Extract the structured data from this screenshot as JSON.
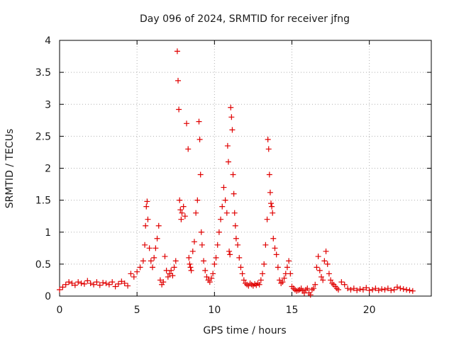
{
  "chart_data": {
    "type": "scatter",
    "title": "Day 096 of 2024, SRMTID for receiver jfng",
    "xlabel": "GPS time / hours",
    "ylabel": "SRMTID / TECUs",
    "xlim": [
      0,
      24
    ],
    "ylim": [
      0,
      4
    ],
    "xticks": [
      0,
      5,
      10,
      15,
      20
    ],
    "yticks": [
      0,
      0.5,
      1,
      1.5,
      2,
      2.5,
      3,
      3.5,
      4
    ],
    "xtick_labels": [
      "0",
      "5",
      "10",
      "15",
      "20"
    ],
    "ytick_labels": [
      "0",
      "0.5",
      "1",
      "1.5",
      "2",
      "2.5",
      "3",
      "3.5",
      "4"
    ],
    "grid": true,
    "marker": "+",
    "series": [
      {
        "name": "SRMTID",
        "color": "#e00000",
        "x": [
          0.0,
          0.2,
          0.4,
          0.6,
          0.8,
          1.0,
          1.2,
          1.4,
          1.6,
          1.8,
          2.0,
          2.2,
          2.4,
          2.6,
          2.8,
          3.0,
          3.2,
          3.4,
          3.6,
          3.8,
          4.0,
          4.2,
          4.4,
          4.6,
          4.8,
          5.0,
          5.2,
          5.4,
          5.5,
          5.55,
          5.6,
          5.65,
          5.7,
          5.8,
          5.9,
          6.0,
          6.1,
          6.2,
          6.3,
          6.4,
          6.5,
          6.6,
          6.7,
          6.8,
          6.9,
          7.0,
          7.1,
          7.2,
          7.3,
          7.4,
          7.5,
          7.6,
          7.65,
          7.7,
          7.75,
          7.8,
          7.85,
          7.9,
          8.0,
          8.1,
          8.2,
          8.3,
          8.35,
          8.4,
          8.45,
          8.5,
          8.6,
          8.7,
          8.8,
          8.9,
          9.0,
          9.05,
          9.1,
          9.15,
          9.2,
          9.3,
          9.4,
          9.5,
          9.6,
          9.7,
          9.8,
          9.9,
          10.0,
          10.1,
          10.2,
          10.3,
          10.4,
          10.5,
          10.6,
          10.7,
          10.8,
          10.85,
          10.9,
          10.95,
          11.0,
          11.05,
          11.1,
          11.15,
          11.2,
          11.25,
          11.3,
          11.35,
          11.4,
          11.5,
          11.6,
          11.7,
          11.8,
          11.9,
          12.0,
          12.1,
          12.2,
          12.3,
          12.4,
          12.5,
          12.6,
          12.7,
          12.8,
          12.9,
          13.0,
          13.1,
          13.2,
          13.3,
          13.4,
          13.45,
          13.5,
          13.55,
          13.6,
          13.65,
          13.7,
          13.75,
          13.8,
          13.9,
          14.0,
          14.1,
          14.2,
          14.3,
          14.4,
          14.5,
          14.6,
          14.7,
          14.8,
          14.9,
          15.0,
          15.1,
          15.2,
          15.3,
          15.4,
          15.5,
          15.6,
          15.7,
          15.8,
          15.9,
          16.0,
          16.1,
          16.2,
          16.3,
          16.4,
          16.5,
          16.6,
          16.7,
          16.8,
          16.9,
          17.0,
          17.1,
          17.2,
          17.3,
          17.4,
          17.5,
          17.6,
          17.7,
          17.8,
          17.9,
          18.0,
          18.2,
          18.4,
          18.6,
          18.8,
          19.0,
          19.2,
          19.4,
          19.6,
          19.8,
          20.0,
          20.2,
          20.4,
          20.6,
          20.8,
          21.0,
          21.2,
          21.4,
          21.6,
          21.8,
          22.0,
          22.2,
          22.4,
          22.6,
          22.8
        ],
        "y": [
          0.1,
          0.14,
          0.18,
          0.22,
          0.2,
          0.17,
          0.22,
          0.2,
          0.19,
          0.24,
          0.2,
          0.18,
          0.22,
          0.17,
          0.21,
          0.2,
          0.18,
          0.22,
          0.15,
          0.19,
          0.23,
          0.2,
          0.16,
          0.35,
          0.3,
          0.38,
          0.45,
          0.55,
          0.8,
          1.1,
          1.4,
          1.48,
          1.2,
          0.75,
          0.55,
          0.45,
          0.6,
          0.75,
          0.9,
          1.1,
          0.25,
          0.18,
          0.22,
          0.62,
          0.4,
          0.3,
          0.35,
          0.4,
          0.32,
          0.45,
          0.55,
          3.83,
          3.37,
          2.92,
          1.5,
          1.35,
          1.2,
          1.3,
          1.4,
          1.25,
          2.7,
          2.3,
          0.6,
          0.5,
          0.45,
          0.4,
          0.7,
          0.85,
          1.3,
          1.5,
          2.73,
          2.45,
          1.9,
          1.0,
          0.8,
          0.55,
          0.4,
          0.3,
          0.25,
          0.22,
          0.28,
          0.35,
          0.5,
          0.6,
          0.8,
          1.0,
          1.2,
          1.4,
          1.7,
          1.5,
          1.3,
          2.35,
          2.1,
          0.7,
          0.65,
          2.95,
          2.8,
          2.6,
          1.9,
          1.6,
          1.3,
          1.1,
          0.9,
          0.8,
          0.6,
          0.45,
          0.35,
          0.25,
          0.2,
          0.18,
          0.16,
          0.2,
          0.18,
          0.16,
          0.19,
          0.17,
          0.2,
          0.18,
          0.25,
          0.35,
          0.5,
          0.8,
          1.2,
          2.45,
          2.3,
          1.9,
          1.62,
          1.45,
          1.4,
          1.3,
          0.9,
          0.75,
          0.65,
          0.45,
          0.25,
          0.2,
          0.22,
          0.28,
          0.35,
          0.45,
          0.55,
          0.35,
          0.15,
          0.12,
          0.1,
          0.08,
          0.09,
          0.1,
          0.12,
          0.08,
          0.05,
          0.1,
          0.12,
          0.05,
          0.02,
          0.1,
          0.12,
          0.18,
          0.45,
          0.62,
          0.4,
          0.3,
          0.25,
          0.55,
          0.7,
          0.5,
          0.35,
          0.25,
          0.2,
          0.18,
          0.15,
          0.12,
          0.1,
          0.22,
          0.18,
          0.12,
          0.1,
          0.12,
          0.09,
          0.11,
          0.1,
          0.13,
          0.09,
          0.1,
          0.12,
          0.09,
          0.11,
          0.1,
          0.12,
          0.09,
          0.1,
          0.14,
          0.12,
          0.11,
          0.1,
          0.09,
          0.08
        ]
      }
    ]
  }
}
